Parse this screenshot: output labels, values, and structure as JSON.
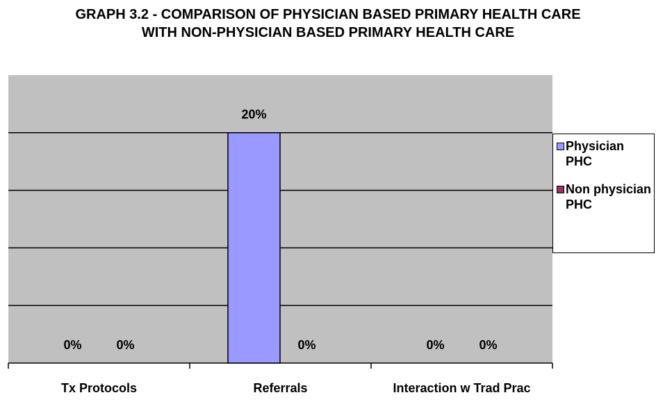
{
  "chart_data": {
    "type": "bar",
    "title": "GRAPH 3.2 - COMPARISON OF PHYSICIAN BASED PRIMARY HEALTH CARE WITH NON-PHYSICIAN BASED PRIMARY HEALTH CARE",
    "categories": [
      "Tx Protocols",
      "Referrals",
      "Interaction w Trad Prac"
    ],
    "series": [
      {
        "name": "Physician PHC",
        "color": "#9999ff",
        "values": [
          0,
          20,
          0
        ],
        "value_labels": [
          "0%",
          "20%",
          "0%"
        ]
      },
      {
        "name": "Non physician PHC",
        "color": "#993366",
        "values": [
          0,
          0,
          0
        ],
        "value_labels": [
          "0%",
          "0%",
          "0%"
        ]
      }
    ],
    "ylim": [
      0,
      25
    ],
    "yticks": [
      0,
      5,
      10,
      15,
      20,
      25
    ],
    "grid": true,
    "legend": "right"
  }
}
